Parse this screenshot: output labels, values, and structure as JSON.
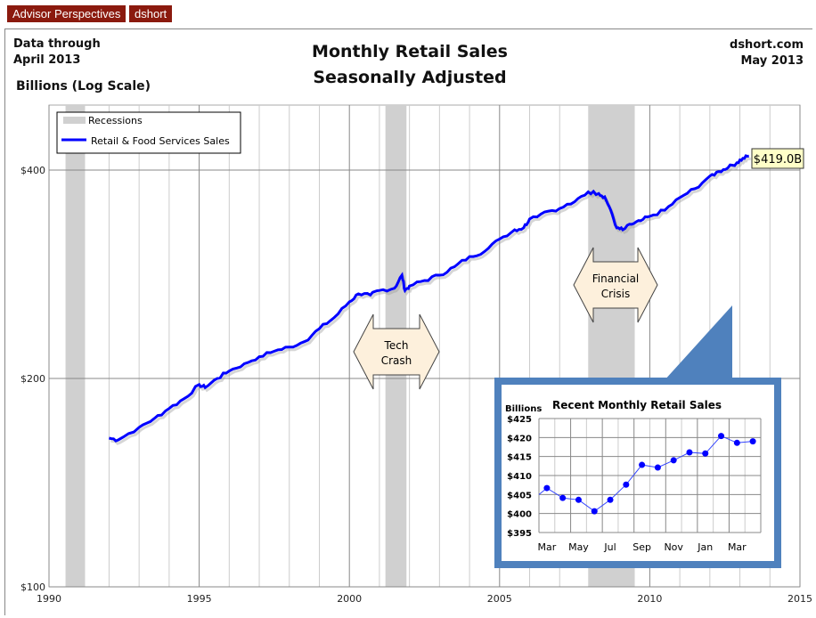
{
  "badges": [
    "Advisor Perspectives",
    "dshort"
  ],
  "header": {
    "data_through_1": "Data through",
    "data_through_2": "April 2013",
    "title_1": "Monthly Retail Sales",
    "title_2": "Seasonally Adjusted",
    "site": "dshort.com",
    "date": "May 2013",
    "units": "Billions (Log Scale)"
  },
  "legend": {
    "recessions": "Recessions",
    "series": "Retail & Food Services Sales"
  },
  "annotations": {
    "tech_1": "Tech",
    "tech_2": "Crash",
    "fin_1": "Financial",
    "fin_2": "Crisis",
    "last_value": "$419.0B"
  },
  "colors": {
    "series": "#0000ff",
    "recession": "#d0d0d0",
    "inset_border": "#4f81bd",
    "badge": "#8b1a0e",
    "callout": "#fdf0dc"
  },
  "chart_data": [
    {
      "type": "line",
      "title": "Monthly Retail Sales Seasonally Adjusted",
      "ylabel": "Billions (Log Scale)",
      "yscale": "log",
      "ylim": [
        100,
        450
      ],
      "yticks": [
        100,
        200,
        400
      ],
      "ytick_labels": [
        "$100",
        "$200",
        "$400"
      ],
      "xlim": [
        1990,
        2015
      ],
      "xticks": [
        1990,
        1995,
        2000,
        2005,
        2010,
        2015
      ],
      "xtick_labels": [
        "1990",
        "1995",
        "2000",
        "2005",
        "2010",
        "2015"
      ],
      "recessions": [
        [
          1990.55,
          1991.2
        ],
        [
          2001.2,
          2001.9
        ],
        [
          2007.95,
          2009.5
        ]
      ],
      "series": [
        {
          "name": "Retail & Food Services Sales",
          "points": [
            [
              1992.0,
              164
            ],
            [
              1992.3,
              163
            ],
            [
              1993.0,
              170
            ],
            [
              1993.5,
              175
            ],
            [
              1994.0,
              181
            ],
            [
              1994.5,
              187
            ],
            [
              1995.0,
              196
            ],
            [
              1995.2,
              194
            ],
            [
              1995.6,
              200
            ],
            [
              1996.0,
              205
            ],
            [
              1996.5,
              210
            ],
            [
              1997.0,
              215
            ],
            [
              1997.5,
              219
            ],
            [
              1998.0,
              222
            ],
            [
              1998.5,
              226
            ],
            [
              1999.0,
              236
            ],
            [
              1999.5,
              245
            ],
            [
              2000.0,
              258
            ],
            [
              2000.3,
              265
            ],
            [
              2000.7,
              264
            ],
            [
              2001.0,
              268
            ],
            [
              2001.5,
              270
            ],
            [
              2001.75,
              282
            ],
            [
              2001.85,
              268
            ],
            [
              2002.0,
              272
            ],
            [
              2002.5,
              277
            ],
            [
              2003.0,
              282
            ],
            [
              2003.5,
              290
            ],
            [
              2004.0,
              300
            ],
            [
              2004.5,
              305
            ],
            [
              2005.0,
              318
            ],
            [
              2005.5,
              328
            ],
            [
              2005.8,
              330
            ],
            [
              2006.0,
              340
            ],
            [
              2006.5,
              348
            ],
            [
              2007.0,
              352
            ],
            [
              2007.5,
              360
            ],
            [
              2007.95,
              372
            ],
            [
              2008.3,
              370
            ],
            [
              2008.5,
              366
            ],
            [
              2008.7,
              350
            ],
            [
              2008.9,
              330
            ],
            [
              2009.1,
              328
            ],
            [
              2009.4,
              334
            ],
            [
              2009.7,
              338
            ],
            [
              2010.0,
              343
            ],
            [
              2010.5,
              350
            ],
            [
              2011.0,
              365
            ],
            [
              2011.5,
              376
            ],
            [
              2012.0,
              392
            ],
            [
              2012.3,
              398
            ],
            [
              2012.6,
              403
            ],
            [
              2012.9,
              410
            ],
            [
              2013.1,
              416
            ],
            [
              2013.3,
              419
            ]
          ]
        }
      ],
      "last_label": "$419.0B"
    },
    {
      "type": "line",
      "title": "Recent Monthly Retail Sales",
      "ylabel": "Billions",
      "ylim": [
        395,
        425
      ],
      "yticks": [
        395,
        400,
        405,
        410,
        415,
        420,
        425
      ],
      "ytick_labels": [
        "$395",
        "$400",
        "$405",
        "$410",
        "$415",
        "$420",
        "$425"
      ],
      "xtick_labels": [
        "Mar",
        "May",
        "Jul",
        "Sep",
        "Nov",
        "Jan",
        "Mar"
      ],
      "series": [
        {
          "months": [
            "Mar",
            "Apr",
            "May",
            "Jun",
            "Jul",
            "Aug",
            "Sep",
            "Oct",
            "Nov",
            "Dec",
            "Jan",
            "Feb",
            "Mar",
            "Apr"
          ],
          "values": [
            406.7,
            404.1,
            403.6,
            400.6,
            403.6,
            407.6,
            412.8,
            412.1,
            414.0,
            416.1,
            415.8,
            420.4,
            418.6,
            419.0
          ]
        }
      ]
    }
  ]
}
